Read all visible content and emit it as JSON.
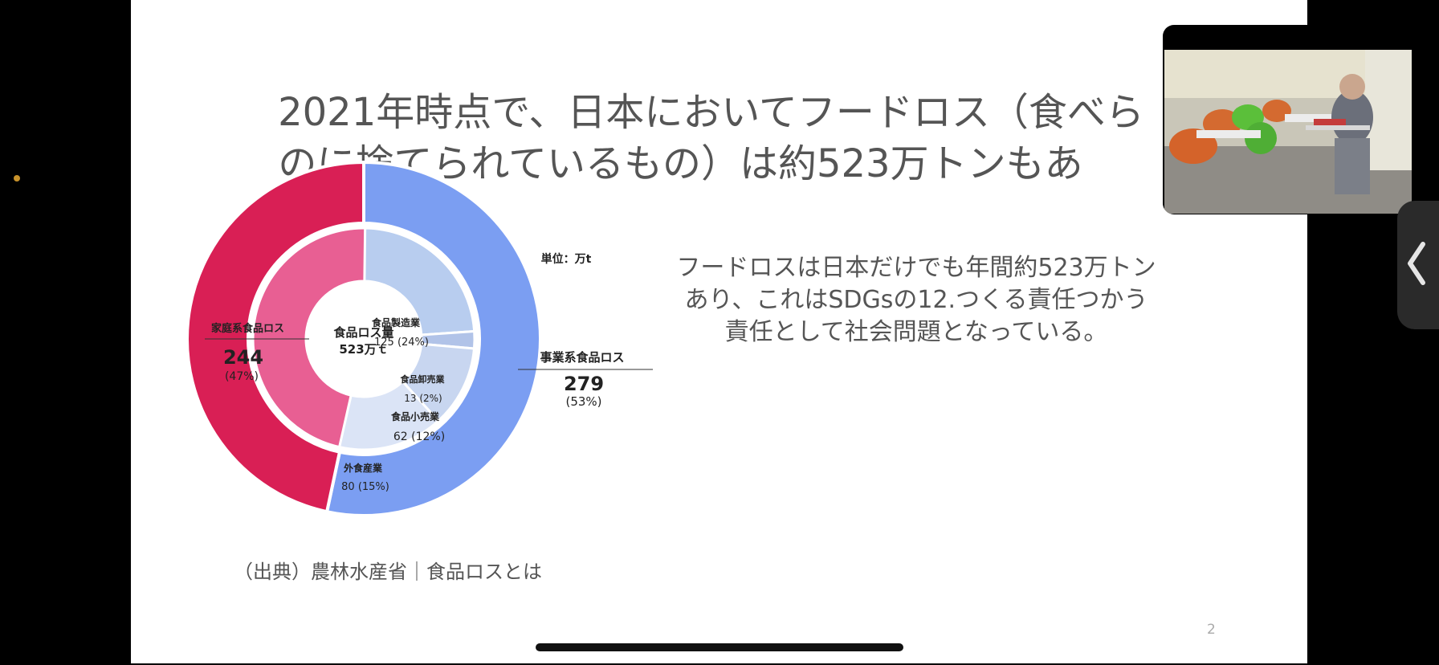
{
  "slide": {
    "title_line1": "2021年時点で、日本においてフードロス（食べら",
    "title_line2": "のに捨てられているもの）は約523万トンもあ",
    "body_lines": [
      "フードロスは日本だけでも年間約523万トン",
      "あり、これはSDGsの12.つくる責任つかう",
      "責任として社会問題となっている。"
    ],
    "source": "（出典）農林水産省｜食品ロスとは",
    "page_number": "2"
  },
  "chart_data": {
    "type": "pie",
    "unit_label": "単位：万t",
    "center_label": "食品ロス量",
    "center_value": "523万ｔ",
    "outer_ring": [
      {
        "name": "家庭系食品ロス",
        "value": 244,
        "percent_label": "(47%)",
        "color": "#d91f55"
      },
      {
        "name": "事業系食品ロス",
        "value": 279,
        "percent_label": "(53%)",
        "color": "#7b9ef2"
      }
    ],
    "inner_ring": [
      {
        "name": "食品製造業",
        "value": 125,
        "value_label": "125 (24%)",
        "color": "#b8cdef"
      },
      {
        "name": "食品卸売業",
        "value": 13,
        "value_label": "13 (2%)",
        "color": "#b1c3e8"
      },
      {
        "name": "食品小売業",
        "value": 62,
        "value_label": "62 (12%)",
        "color": "#c8d6f0"
      },
      {
        "name": "外食産業",
        "value": 80,
        "value_label": "80 (15%)",
        "color": "#dbe4f6"
      },
      {
        "name": "家庭系食品ロス",
        "value": 244,
        "value_label": "",
        "color": "#e85f93"
      }
    ],
    "outer_labels": {
      "household_name": "家庭系食品ロス",
      "household_value": "244",
      "household_pct": "(47%)",
      "business_name": "事業系食品ロス",
      "business_value": "279",
      "business_pct": "(53%)"
    }
  },
  "overlay": {
    "video_icon": "participant-video",
    "collapse_icon": "chevron-left-icon"
  }
}
